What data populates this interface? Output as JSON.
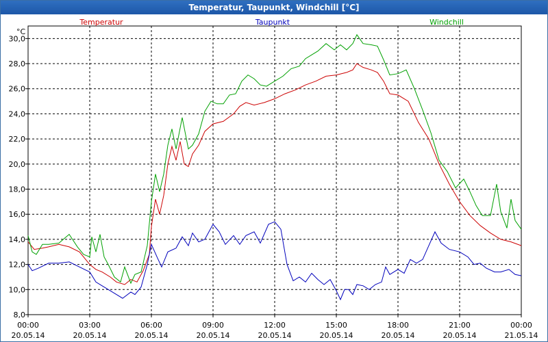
{
  "window": {
    "title": "Temperatur, Taupunkt, Windchill [°C]"
  },
  "chart_data": {
    "type": "line",
    "title": "Temperatur, Taupunkt, Windchill [°C]",
    "ylabel": "°C",
    "xlabel": "",
    "ylim": [
      8.0,
      31.0
    ],
    "xlim": [
      0,
      24
    ],
    "grid": true,
    "y_ticks": [
      "8,0",
      "10,0",
      "12,0",
      "14,0",
      "16,0",
      "18,0",
      "20,0",
      "22,0",
      "24,0",
      "26,0",
      "28,0",
      "30,0"
    ],
    "y_tick_values": [
      8,
      10,
      12,
      14,
      16,
      18,
      20,
      22,
      24,
      26,
      28,
      30
    ],
    "x_ticks": [
      {
        "time": "00:00",
        "date": "20.05.14"
      },
      {
        "time": "03:00",
        "date": "20.05.14"
      },
      {
        "time": "06:00",
        "date": "20.05.14"
      },
      {
        "time": "09:00",
        "date": "20.05.14"
      },
      {
        "time": "12:00",
        "date": "20.05.14"
      },
      {
        "time": "15:00",
        "date": "20.05.14"
      },
      {
        "time": "18:00",
        "date": "20.05.14"
      },
      {
        "time": "21:00",
        "date": "20.05.14"
      },
      {
        "time": "00:00",
        "date": "21.05.14"
      }
    ],
    "x_tick_hours": [
      0,
      3,
      6,
      9,
      12,
      15,
      18,
      21,
      24
    ],
    "legend_placement": "top",
    "series": [
      {
        "name": "Temperatur",
        "color": "#cc0000",
        "points": [
          [
            0,
            13.8
          ],
          [
            0.3,
            13.2
          ],
          [
            0.7,
            13.3
          ],
          [
            1.0,
            13.4
          ],
          [
            1.5,
            13.6
          ],
          [
            2.0,
            13.4
          ],
          [
            2.5,
            13.0
          ],
          [
            3.0,
            12.0
          ],
          [
            3.3,
            11.6
          ],
          [
            3.6,
            11.4
          ],
          [
            4.0,
            11.0
          ],
          [
            4.3,
            10.6
          ],
          [
            4.7,
            10.4
          ],
          [
            5.0,
            10.8
          ],
          [
            5.3,
            10.6
          ],
          [
            5.6,
            11.5
          ],
          [
            5.9,
            12.8
          ],
          [
            6.0,
            15.0
          ],
          [
            6.2,
            17.2
          ],
          [
            6.4,
            16.0
          ],
          [
            6.6,
            17.5
          ],
          [
            6.8,
            20.0
          ],
          [
            7.0,
            21.4
          ],
          [
            7.2,
            20.3
          ],
          [
            7.4,
            21.8
          ],
          [
            7.6,
            20.0
          ],
          [
            7.8,
            19.8
          ],
          [
            8.0,
            20.8
          ],
          [
            8.3,
            21.5
          ],
          [
            8.6,
            22.6
          ],
          [
            9.0,
            23.2
          ],
          [
            9.5,
            23.4
          ],
          [
            10.0,
            24.0
          ],
          [
            10.3,
            24.6
          ],
          [
            10.6,
            24.9
          ],
          [
            11.0,
            24.7
          ],
          [
            11.5,
            24.9
          ],
          [
            12.0,
            25.2
          ],
          [
            12.5,
            25.6
          ],
          [
            13.0,
            25.9
          ],
          [
            13.5,
            26.3
          ],
          [
            14.0,
            26.6
          ],
          [
            14.5,
            27.0
          ],
          [
            15.0,
            27.1
          ],
          [
            15.5,
            27.3
          ],
          [
            15.8,
            27.5
          ],
          [
            16.0,
            28.0
          ],
          [
            16.3,
            27.7
          ],
          [
            16.7,
            27.5
          ],
          [
            17.0,
            27.3
          ],
          [
            17.3,
            26.6
          ],
          [
            17.6,
            25.6
          ],
          [
            18.0,
            25.5
          ],
          [
            18.5,
            25.0
          ],
          [
            19.0,
            23.3
          ],
          [
            19.5,
            22.0
          ],
          [
            20.0,
            20.0
          ],
          [
            20.5,
            18.4
          ],
          [
            21.0,
            17.0
          ],
          [
            21.5,
            15.9
          ],
          [
            22.0,
            15.1
          ],
          [
            22.5,
            14.5
          ],
          [
            23.0,
            14.0
          ],
          [
            23.5,
            13.8
          ],
          [
            24.0,
            13.5
          ]
        ]
      },
      {
        "name": "Taupunkt",
        "color": "#0000bb",
        "points": [
          [
            0,
            12.0
          ],
          [
            0.2,
            11.5
          ],
          [
            0.5,
            11.7
          ],
          [
            1.0,
            12.1
          ],
          [
            1.5,
            12.1
          ],
          [
            2.0,
            12.2
          ],
          [
            2.5,
            11.8
          ],
          [
            3.0,
            11.4
          ],
          [
            3.3,
            10.6
          ],
          [
            3.6,
            10.3
          ],
          [
            4.0,
            9.9
          ],
          [
            4.3,
            9.6
          ],
          [
            4.6,
            9.3
          ],
          [
            5.0,
            9.8
          ],
          [
            5.2,
            9.6
          ],
          [
            5.5,
            10.2
          ],
          [
            5.8,
            12.0
          ],
          [
            6.0,
            13.6
          ],
          [
            6.3,
            12.5
          ],
          [
            6.5,
            11.8
          ],
          [
            6.8,
            13.0
          ],
          [
            7.2,
            13.3
          ],
          [
            7.5,
            14.2
          ],
          [
            7.8,
            13.5
          ],
          [
            8.0,
            14.5
          ],
          [
            8.3,
            13.8
          ],
          [
            8.6,
            14.0
          ],
          [
            9.0,
            15.2
          ],
          [
            9.3,
            14.6
          ],
          [
            9.6,
            13.6
          ],
          [
            10.0,
            14.3
          ],
          [
            10.3,
            13.6
          ],
          [
            10.6,
            14.3
          ],
          [
            11.0,
            14.6
          ],
          [
            11.3,
            13.7
          ],
          [
            11.7,
            15.2
          ],
          [
            12.0,
            15.4
          ],
          [
            12.3,
            14.8
          ],
          [
            12.6,
            12.0
          ],
          [
            12.9,
            10.7
          ],
          [
            13.2,
            11.0
          ],
          [
            13.5,
            10.6
          ],
          [
            13.8,
            11.3
          ],
          [
            14.1,
            10.8
          ],
          [
            14.4,
            10.4
          ],
          [
            14.7,
            10.8
          ],
          [
            15.0,
            9.9
          ],
          [
            15.2,
            9.2
          ],
          [
            15.4,
            10.0
          ],
          [
            15.6,
            10.0
          ],
          [
            15.8,
            9.6
          ],
          [
            16.0,
            10.4
          ],
          [
            16.3,
            10.3
          ],
          [
            16.6,
            10.0
          ],
          [
            16.9,
            10.4
          ],
          [
            17.2,
            10.6
          ],
          [
            17.4,
            11.8
          ],
          [
            17.6,
            11.2
          ],
          [
            18.0,
            11.6
          ],
          [
            18.3,
            11.3
          ],
          [
            18.6,
            12.4
          ],
          [
            18.9,
            12.1
          ],
          [
            19.2,
            12.4
          ],
          [
            19.5,
            13.5
          ],
          [
            19.8,
            14.6
          ],
          [
            20.1,
            13.7
          ],
          [
            20.5,
            13.2
          ],
          [
            21.0,
            13.0
          ],
          [
            21.4,
            12.6
          ],
          [
            21.7,
            12.0
          ],
          [
            22.0,
            12.1
          ],
          [
            22.3,
            11.7
          ],
          [
            22.7,
            11.4
          ],
          [
            23.0,
            11.4
          ],
          [
            23.4,
            11.6
          ],
          [
            23.7,
            11.2
          ],
          [
            24.0,
            11.1
          ]
        ]
      },
      {
        "name": "Windchill",
        "color": "#00a000",
        "points": [
          [
            0,
            14.3
          ],
          [
            0.2,
            13.0
          ],
          [
            0.4,
            12.8
          ],
          [
            0.7,
            13.6
          ],
          [
            1.0,
            13.6
          ],
          [
            1.5,
            13.7
          ],
          [
            2.0,
            14.4
          ],
          [
            2.4,
            13.4
          ],
          [
            2.7,
            12.8
          ],
          [
            3.0,
            12.6
          ],
          [
            3.1,
            14.2
          ],
          [
            3.3,
            13.0
          ],
          [
            3.5,
            14.4
          ],
          [
            3.7,
            12.6
          ],
          [
            3.9,
            12.0
          ],
          [
            4.2,
            11.0
          ],
          [
            4.5,
            10.6
          ],
          [
            4.7,
            11.8
          ],
          [
            5.0,
            10.5
          ],
          [
            5.2,
            11.2
          ],
          [
            5.5,
            11.4
          ],
          [
            5.8,
            13.5
          ],
          [
            6.0,
            17.0
          ],
          [
            6.2,
            19.2
          ],
          [
            6.4,
            17.8
          ],
          [
            6.6,
            19.2
          ],
          [
            6.8,
            21.5
          ],
          [
            7.0,
            22.8
          ],
          [
            7.2,
            21.2
          ],
          [
            7.5,
            23.7
          ],
          [
            7.8,
            21.2
          ],
          [
            8.0,
            21.5
          ],
          [
            8.3,
            22.4
          ],
          [
            8.6,
            24.2
          ],
          [
            8.9,
            25.0
          ],
          [
            9.2,
            24.8
          ],
          [
            9.5,
            24.8
          ],
          [
            9.8,
            25.5
          ],
          [
            10.1,
            25.6
          ],
          [
            10.4,
            26.6
          ],
          [
            10.7,
            27.1
          ],
          [
            11.0,
            26.8
          ],
          [
            11.3,
            26.3
          ],
          [
            11.6,
            26.2
          ],
          [
            12.0,
            26.6
          ],
          [
            12.4,
            27.0
          ],
          [
            12.8,
            27.6
          ],
          [
            13.2,
            27.8
          ],
          [
            13.5,
            28.4
          ],
          [
            13.8,
            28.7
          ],
          [
            14.1,
            29.0
          ],
          [
            14.5,
            29.6
          ],
          [
            14.9,
            29.1
          ],
          [
            15.2,
            29.5
          ],
          [
            15.5,
            29.1
          ],
          [
            15.8,
            29.6
          ],
          [
            16.0,
            30.3
          ],
          [
            16.3,
            29.6
          ],
          [
            16.7,
            29.5
          ],
          [
            17.0,
            29.4
          ],
          [
            17.3,
            28.3
          ],
          [
            17.6,
            27.1
          ],
          [
            18.0,
            27.2
          ],
          [
            18.4,
            27.5
          ],
          [
            18.8,
            26.0
          ],
          [
            19.2,
            24.3
          ],
          [
            19.6,
            22.5
          ],
          [
            20.0,
            20.3
          ],
          [
            20.4,
            19.4
          ],
          [
            20.8,
            18.1
          ],
          [
            21.2,
            18.8
          ],
          [
            21.5,
            17.8
          ],
          [
            21.8,
            16.7
          ],
          [
            22.1,
            15.9
          ],
          [
            22.5,
            15.9
          ],
          [
            22.8,
            18.4
          ],
          [
            23.0,
            16.2
          ],
          [
            23.3,
            14.9
          ],
          [
            23.5,
            17.2
          ],
          [
            23.7,
            15.5
          ],
          [
            24.0,
            14.8
          ]
        ]
      }
    ]
  }
}
